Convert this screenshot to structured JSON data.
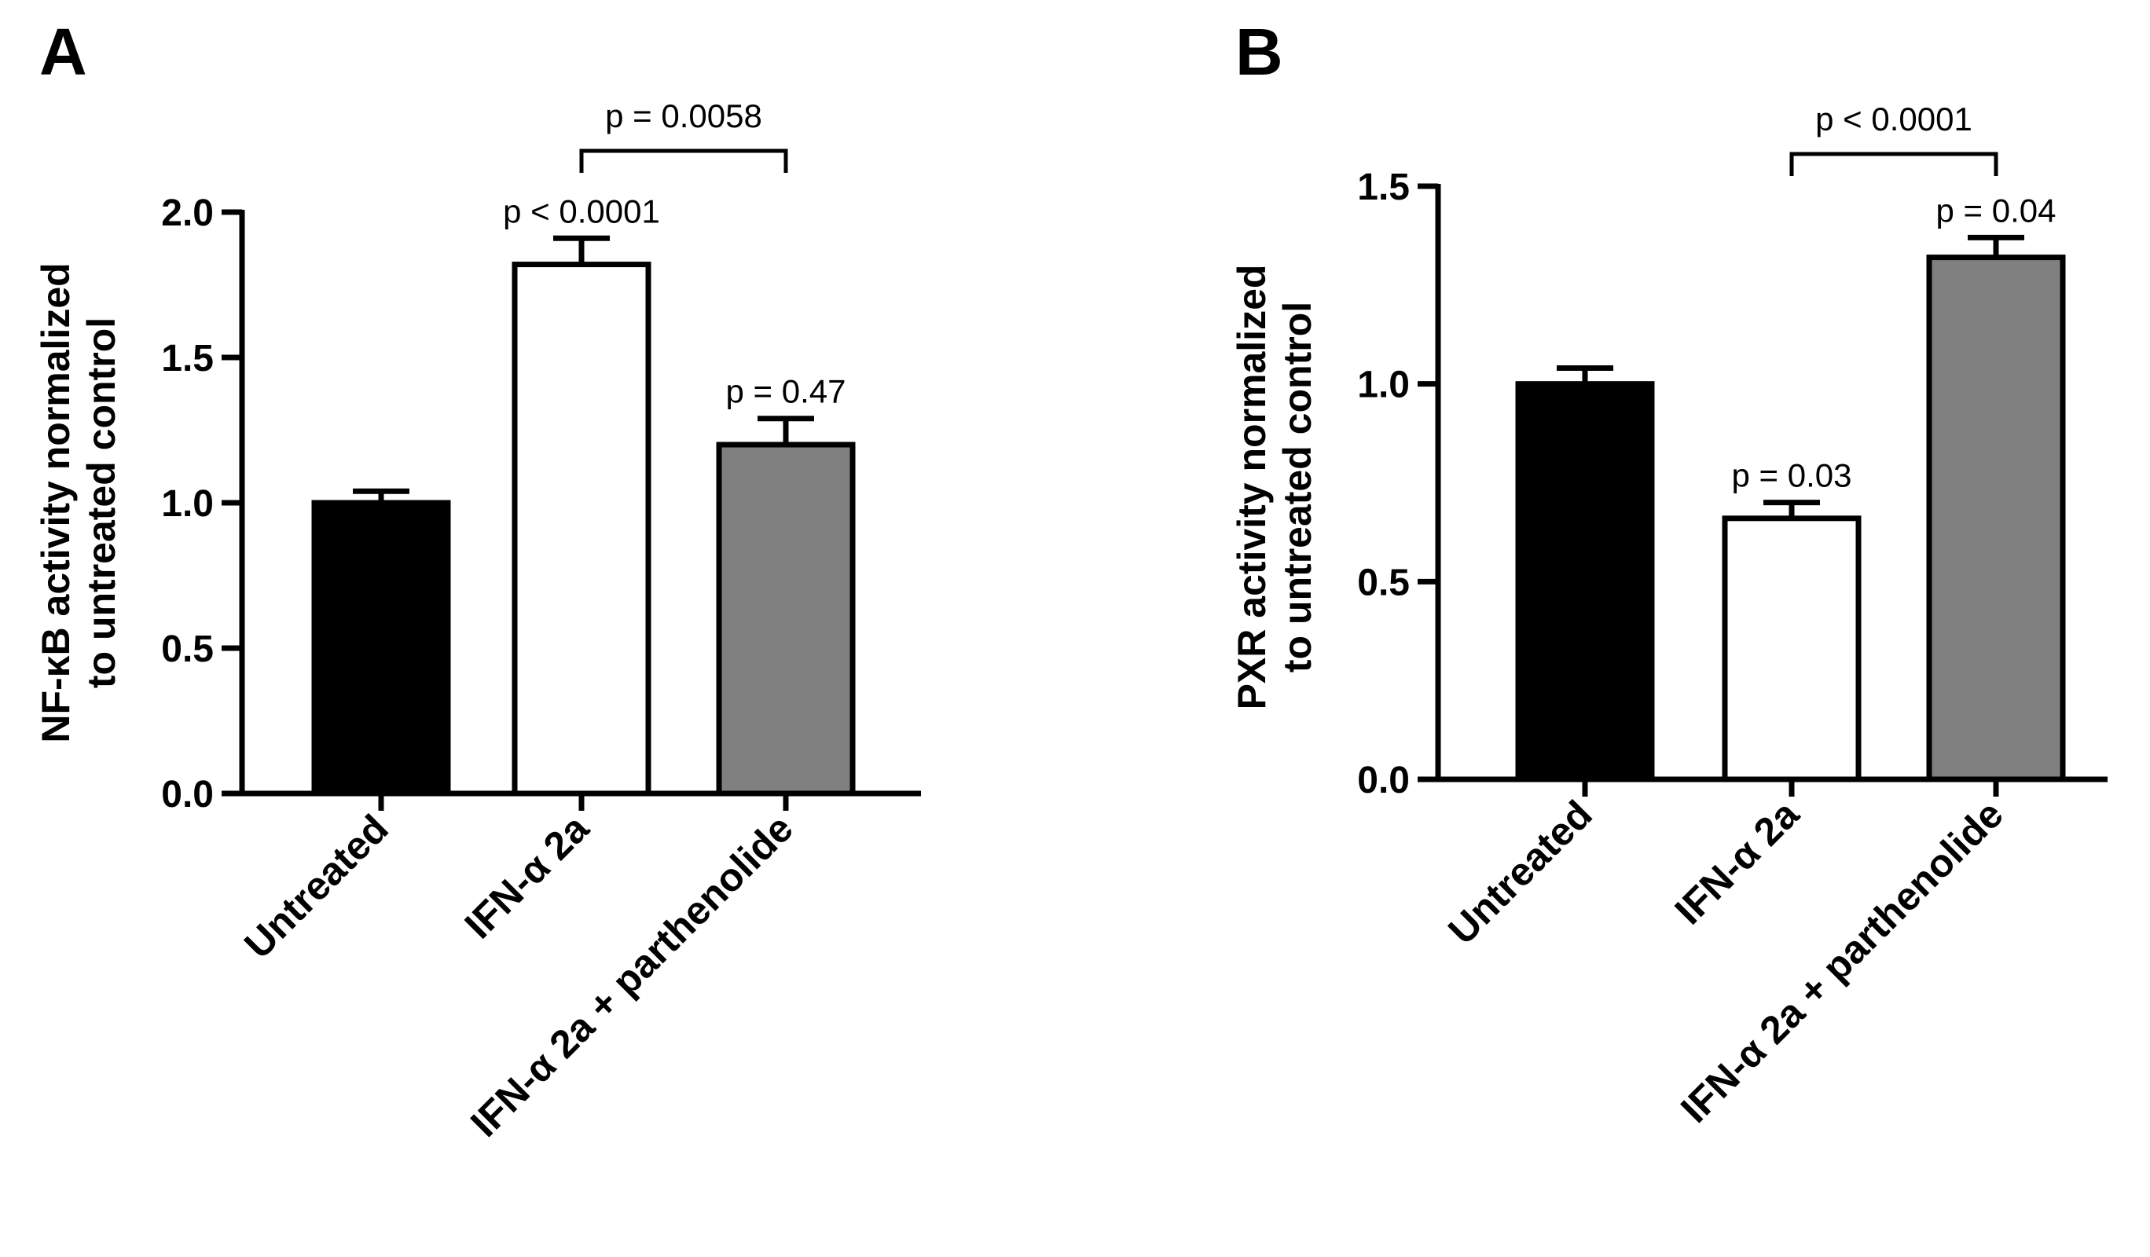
{
  "chart_data": [
    {
      "type": "bar",
      "panel_label": "A",
      "ylabel_lines": [
        "NF-κB activity normalized",
        "to untreated control"
      ],
      "categories": [
        "Untreated",
        "IFN-α 2a",
        "IFN-α 2a + parthenolide"
      ],
      "values": [
        1.0,
        1.82,
        1.2
      ],
      "errors": [
        0.04,
        0.09,
        0.09
      ],
      "bar_colors": [
        "#000000",
        "#ffffff",
        "#808080"
      ],
      "ylim": [
        0,
        2.0
      ],
      "yticks": [
        0.0,
        0.5,
        1.0,
        1.5,
        2.0
      ],
      "ytick_labels": [
        "0.0",
        "0.5",
        "1.0",
        "1.5",
        "2.0"
      ],
      "bar_annotations": [
        {
          "bar": 1,
          "text": "p < 0.0001"
        },
        {
          "bar": 2,
          "text": "p = 0.47"
        }
      ],
      "brackets": [
        {
          "from": 1,
          "to": 2,
          "text": "p = 0.0058"
        }
      ]
    },
    {
      "type": "bar",
      "panel_label": "B",
      "ylabel_lines": [
        "PXR activity normalized",
        "to untreated control"
      ],
      "categories": [
        "Untreated",
        "IFN-α 2a",
        "IFN-α 2a + parthenolide"
      ],
      "values": [
        1.0,
        0.66,
        1.32
      ],
      "errors": [
        0.04,
        0.04,
        0.05
      ],
      "bar_colors": [
        "#000000",
        "#ffffff",
        "#808080"
      ],
      "ylim": [
        0,
        1.5
      ],
      "yticks": [
        0.0,
        0.5,
        1.0,
        1.5
      ],
      "ytick_labels": [
        "0.0",
        "0.5",
        "1.0",
        "1.5"
      ],
      "bar_annotations": [
        {
          "bar": 1,
          "text": "p = 0.03"
        },
        {
          "bar": 2,
          "text": "p = 0.04"
        }
      ],
      "brackets": [
        {
          "from": 1,
          "to": 2,
          "text": "p < 0.0001"
        }
      ]
    }
  ]
}
